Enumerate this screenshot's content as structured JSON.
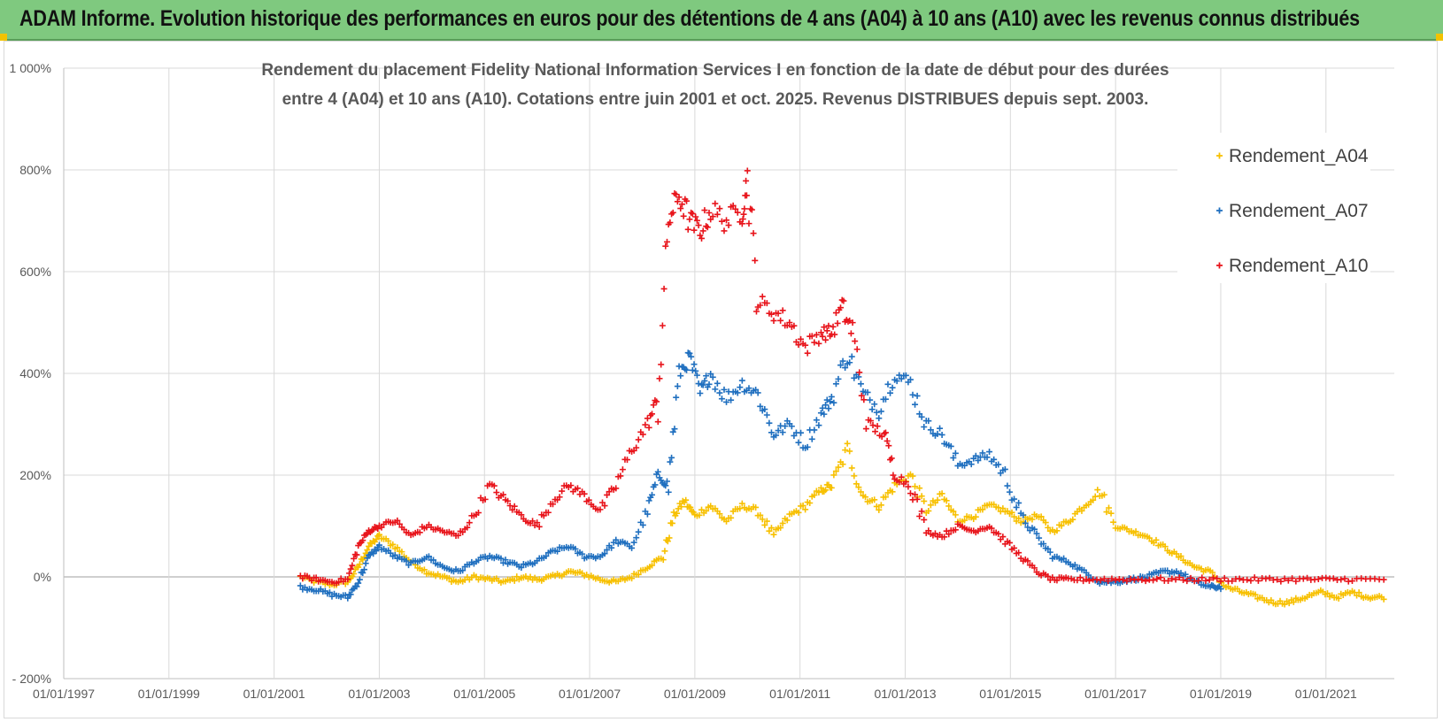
{
  "banner": {
    "title": "ADAM Informe. Evolution historique des performances en euros pour des détentions de 4 ans (A04) à 10 ans (A10) avec les revenus connus distribués"
  },
  "colors": {
    "A04": "#f7c000",
    "A07": "#1f6fbf",
    "A10": "#e8141b",
    "banner": "#7fc97f"
  },
  "chart_data": {
    "type": "scatter",
    "title_lines": [
      "Rendement du placement Fidelity National Information Services I en fonction de la date de début pour des durées",
      "entre 4 (A04) et 10 ans (A10). Cotations entre juin 2001 et oct. 2025. Revenus DISTRIBUES depuis sept. 2003."
    ],
    "x_tick_labels": [
      "01/01/1997",
      "01/01/1999",
      "01/01/2001",
      "01/01/2003",
      "01/01/2005",
      "01/01/2007",
      "01/01/2009",
      "01/01/2011",
      "01/01/2013",
      "01/01/2015",
      "01/01/2017",
      "01/01/2019",
      "01/01/2021"
    ],
    "x_range": [
      1997.0,
      2022.3
    ],
    "y_tick_labels": [
      "1 000%",
      "800%",
      "600%",
      "400%",
      "200%",
      "0%",
      "- 200%"
    ],
    "y_ticks": [
      1000,
      800,
      600,
      400,
      200,
      0,
      -200
    ],
    "y_range": [
      -200,
      1000
    ],
    "legend": [
      "Rendement_A04",
      "Rendement_A07",
      "Rendement_A10"
    ],
    "series": [
      {
        "name": "Rendement_A04",
        "color": "#f7c000",
        "x": [
          2001.5,
          2001.8,
          2002.1,
          2002.4,
          2002.6,
          2002.8,
          2003.0,
          2003.3,
          2003.6,
          2003.9,
          2004.2,
          2004.5,
          2004.8,
          2005.1,
          2005.4,
          2005.7,
          2006.0,
          2006.3,
          2006.6,
          2006.9,
          2007.2,
          2007.5,
          2007.8,
          2008.1,
          2008.4,
          2008.6,
          2008.8,
          2009.0,
          2009.3,
          2009.6,
          2009.9,
          2010.2,
          2010.5,
          2010.8,
          2011.1,
          2011.4,
          2011.6,
          2011.9,
          2012.2,
          2012.5,
          2012.8,
          2013.1,
          2013.4,
          2013.7,
          2014.0,
          2014.3,
          2014.6,
          2014.9,
          2015.2,
          2015.5,
          2015.8,
          2016.1,
          2016.4,
          2016.7,
          2017.0,
          2017.3,
          2017.6,
          2017.9,
          2018.2,
          2018.5,
          2018.8,
          2019.1,
          2019.4,
          2019.7,
          2020.0,
          2020.3,
          2020.6,
          2020.9,
          2021.2,
          2021.5,
          2021.8,
          2022.1
        ],
        "y": [
          0,
          -10,
          -15,
          -10,
          20,
          60,
          80,
          60,
          30,
          10,
          0,
          -10,
          0,
          -5,
          -10,
          0,
          -5,
          0,
          10,
          5,
          -5,
          -10,
          0,
          20,
          40,
          120,
          150,
          120,
          140,
          110,
          140,
          130,
          80,
          120,
          140,
          170,
          180,
          250,
          160,
          140,
          180,
          200,
          130,
          160,
          110,
          120,
          140,
          130,
          110,
          120,
          90,
          110,
          140,
          170,
          100,
          90,
          80,
          60,
          40,
          20,
          10,
          -20,
          -30,
          -40,
          -50,
          -50,
          -40,
          -30,
          -40,
          -30,
          -40,
          -40
        ]
      },
      {
        "name": "Rendement_A07",
        "color": "#1f6fbf",
        "x": [
          2001.5,
          2001.8,
          2002.1,
          2002.4,
          2002.6,
          2002.8,
          2003.0,
          2003.3,
          2003.6,
          2003.9,
          2004.2,
          2004.5,
          2004.8,
          2005.1,
          2005.4,
          2005.7,
          2006.0,
          2006.3,
          2006.6,
          2006.9,
          2007.2,
          2007.5,
          2007.8,
          2008.1,
          2008.3,
          2008.5,
          2008.7,
          2008.9,
          2009.1,
          2009.3,
          2009.6,
          2009.9,
          2010.2,
          2010.5,
          2010.8,
          2011.1,
          2011.4,
          2011.6,
          2011.9,
          2012.2,
          2012.5,
          2012.8,
          2013.1,
          2013.4,
          2013.7,
          2014.0,
          2014.3,
          2014.6,
          2014.9,
          2015.2,
          2015.5,
          2015.8,
          2016.1,
          2016.4,
          2016.7,
          2017.0,
          2017.3,
          2017.6,
          2017.9,
          2018.2,
          2018.5,
          2018.8,
          2019.0
        ],
        "y": [
          -20,
          -25,
          -35,
          -40,
          -10,
          40,
          60,
          40,
          25,
          40,
          20,
          10,
          30,
          40,
          30,
          20,
          30,
          50,
          60,
          40,
          40,
          70,
          60,
          130,
          200,
          180,
          400,
          430,
          360,
          400,
          350,
          380,
          360,
          280,
          300,
          260,
          320,
          350,
          440,
          360,
          330,
          400,
          380,
          300,
          280,
          220,
          230,
          240,
          200,
          120,
          80,
          40,
          30,
          10,
          -10,
          -10,
          -5,
          0,
          10,
          10,
          -10,
          -20,
          -20
        ]
      },
      {
        "name": "Rendement_A10",
        "color": "#e8141b",
        "x": [
          2001.5,
          2001.8,
          2002.1,
          2002.4,
          2002.6,
          2002.8,
          2003.0,
          2003.3,
          2003.6,
          2003.9,
          2004.2,
          2004.5,
          2004.8,
          2005.1,
          2005.4,
          2005.7,
          2006.0,
          2006.3,
          2006.6,
          2006.9,
          2007.2,
          2007.5,
          2007.8,
          2008.1,
          2008.3,
          2008.5,
          2008.7,
          2008.9,
          2009.1,
          2009.3,
          2009.6,
          2009.9,
          2010.0,
          2010.2,
          2010.5,
          2010.8,
          2011.1,
          2011.4,
          2011.6,
          2011.8,
          2012.0,
          2012.3,
          2012.6,
          2012.8,
          2013.1,
          2013.4,
          2013.7,
          2014.0,
          2014.3,
          2014.6,
          2014.9,
          2015.2,
          2015.5,
          2015.8,
          2016.1,
          2016.5,
          2017.0,
          2017.5,
          2018.0,
          2018.5,
          2019.0,
          2019.5,
          2020.0,
          2020.5,
          2021.0,
          2021.5,
          2022.1
        ],
        "y": [
          0,
          -5,
          -10,
          -5,
          60,
          90,
          100,
          110,
          80,
          100,
          90,
          80,
          120,
          180,
          150,
          120,
          100,
          150,
          180,
          160,
          130,
          180,
          250,
          300,
          350,
          700,
          750,
          700,
          680,
          720,
          700,
          720,
          780,
          540,
          520,
          500,
          450,
          480,
          480,
          530,
          480,
          300,
          280,
          200,
          180,
          90,
          80,
          100,
          90,
          100,
          70,
          40,
          10,
          -5,
          -5,
          -5,
          -5,
          -5,
          -5,
          -5,
          -5,
          -5,
          -5,
          -5,
          -5,
          -5,
          -5
        ]
      }
    ]
  }
}
